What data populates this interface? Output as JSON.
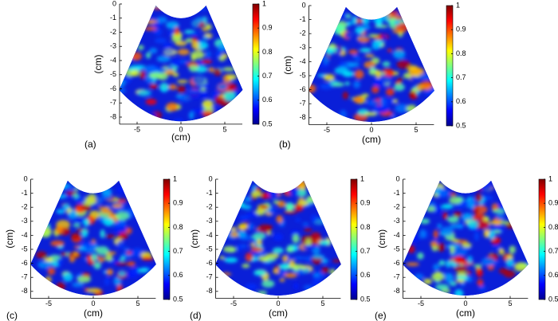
{
  "chart_data": [
    {
      "type": "heatmap",
      "panel": "(a)",
      "xlabel": "(cm)",
      "ylabel": "(cm)",
      "xlim": [
        -7,
        7
      ],
      "xticks": [
        -5,
        0,
        5
      ],
      "ylim": [
        -8.5,
        0
      ],
      "yticks": [
        0,
        -1,
        -2,
        -3,
        -4,
        -5,
        -6,
        -7,
        -8
      ],
      "clim": [
        0.5,
        1
      ],
      "cticks": [
        0.5,
        0.6,
        0.7,
        0.8,
        0.9,
        1
      ],
      "colormap": "jet"
    },
    {
      "type": "heatmap",
      "panel": "(b)",
      "xlabel": "(cm)",
      "ylabel": "(cm)",
      "xlim": [
        -7,
        7
      ],
      "xticks": [
        -5,
        0,
        5
      ],
      "ylim": [
        -8.5,
        0
      ],
      "yticks": [
        0,
        -1,
        -2,
        -3,
        -4,
        -5,
        -6,
        -7,
        -8
      ],
      "clim": [
        0.5,
        1
      ],
      "cticks": [
        0.5,
        0.6,
        0.7,
        0.8,
        0.9,
        1
      ],
      "colormap": "jet"
    },
    {
      "type": "heatmap",
      "panel": "(c)",
      "xlabel": "(cm)",
      "ylabel": "(cm)",
      "xlim": [
        -7,
        7
      ],
      "xticks": [
        -5,
        0,
        5
      ],
      "ylim": [
        -8.5,
        0
      ],
      "yticks": [
        0,
        -1,
        -2,
        -3,
        -4,
        -5,
        -6,
        -7,
        -8
      ],
      "clim": [
        0.5,
        1
      ],
      "cticks": [
        0.5,
        0.6,
        0.7,
        0.8,
        0.9,
        1
      ],
      "colormap": "jet"
    },
    {
      "type": "heatmap",
      "panel": "(d)",
      "xlabel": "(cm)",
      "ylabel": "(cm)",
      "xlim": [
        -7,
        7
      ],
      "xticks": [
        -5,
        0,
        5
      ],
      "ylim": [
        -8.5,
        0
      ],
      "yticks": [
        0,
        -1,
        -2,
        -3,
        -4,
        -5,
        -6,
        -7,
        -8
      ],
      "clim": [
        0.5,
        1
      ],
      "cticks": [
        0.5,
        0.6,
        0.7,
        0.8,
        0.9,
        1
      ],
      "colormap": "jet"
    },
    {
      "type": "heatmap",
      "panel": "(e)",
      "xlabel": "(cm)",
      "ylabel": "(cm)",
      "xlim": [
        -7,
        7
      ],
      "xticks": [
        -5,
        0,
        5
      ],
      "ylim": [
        -8.5,
        0
      ],
      "yticks": [
        0,
        -1,
        -2,
        -3,
        -4,
        -5,
        -6,
        -7,
        -8
      ],
      "clim": [
        0.5,
        1
      ],
      "cticks": [
        0.5,
        0.6,
        0.7,
        0.8,
        0.9,
        1
      ],
      "colormap": "jet"
    }
  ]
}
